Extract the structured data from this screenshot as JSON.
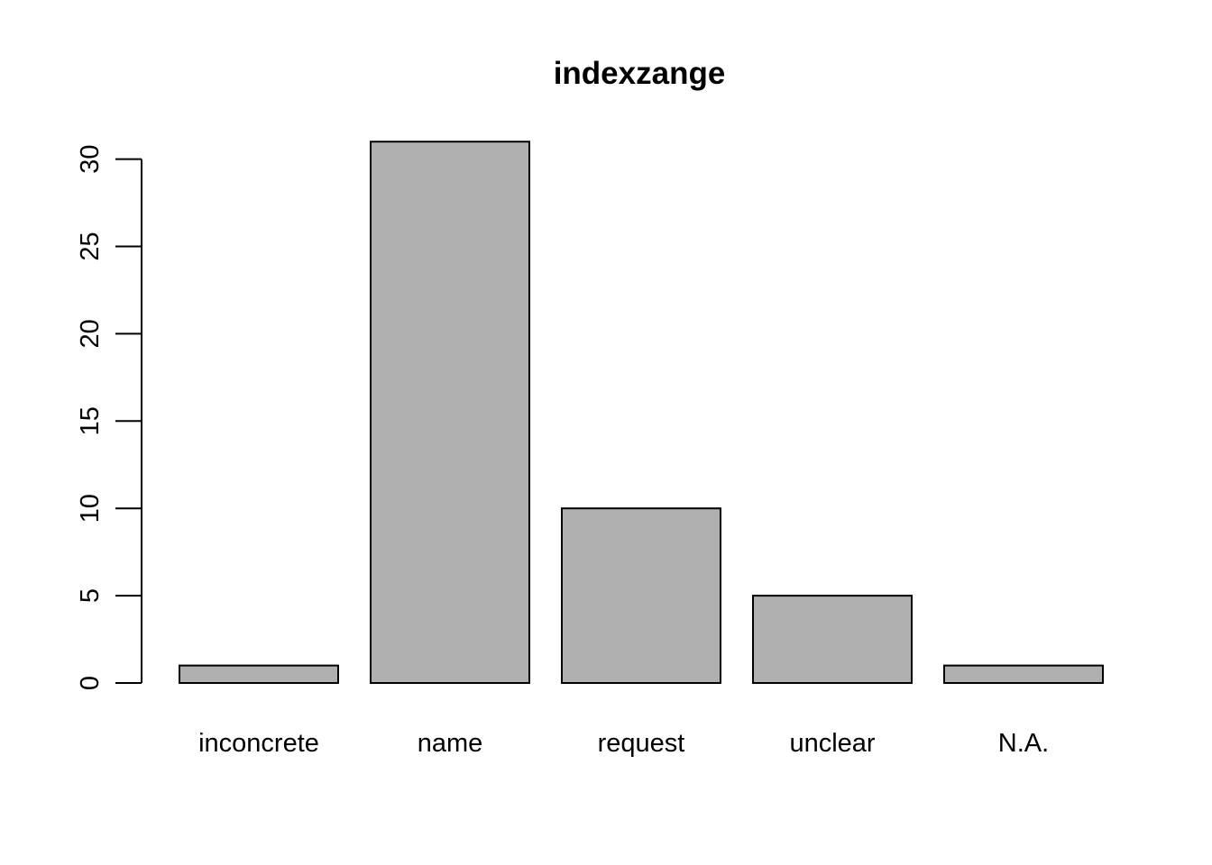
{
  "chart_data": {
    "type": "bar",
    "title": "indexzange",
    "xlabel": "",
    "ylabel": "",
    "categories": [
      "inconcrete",
      "name",
      "request",
      "unclear",
      "N.A."
    ],
    "values": [
      1,
      31,
      10,
      5,
      1
    ],
    "ylim": [
      0,
      31
    ],
    "yticks": [
      0,
      5,
      10,
      15,
      20,
      25,
      30
    ],
    "ytick_labels": [
      "0",
      "5",
      "10",
      "15",
      "20",
      "25",
      "30"
    ],
    "grid": false,
    "legend": "none",
    "colors": {
      "bar_fill": "#b0b0b0",
      "bar_stroke": "#000000",
      "axis": "#000000",
      "text": "#000000",
      "background": "#ffffff"
    }
  }
}
